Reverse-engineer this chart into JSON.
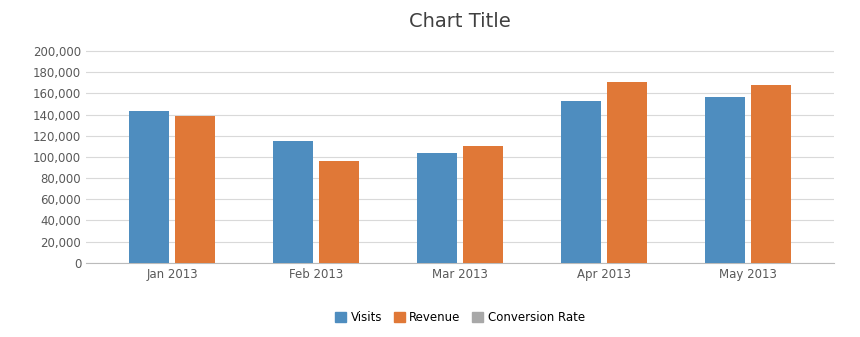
{
  "title": "Chart Title",
  "categories": [
    "Jan 2013",
    "Feb 2013",
    "Mar 2013",
    "Apr 2013",
    "May 2013"
  ],
  "series": [
    {
      "name": "Visits",
      "values": [
        143000,
        115000,
        104000,
        153000,
        157000
      ],
      "color": "#4E8DBF"
    },
    {
      "name": "Revenue",
      "values": [
        139000,
        96000,
        110000,
        171000,
        168000
      ],
      "color": "#E07837"
    },
    {
      "name": "Conversion Rate",
      "values": [
        0,
        0,
        0,
        0,
        0
      ],
      "color": "#A8A8A8"
    }
  ],
  "ylim": [
    0,
    210000
  ],
  "yticks": [
    0,
    20000,
    40000,
    60000,
    80000,
    100000,
    120000,
    140000,
    160000,
    180000,
    200000
  ],
  "background_color": "#FFFFFF",
  "plot_bg_color": "#FFFFFF",
  "grid_color": "#D9D9D9",
  "title_fontsize": 14,
  "tick_fontsize": 8.5,
  "legend_fontsize": 8.5,
  "bar_width": 0.28,
  "bar_gap": 0.04,
  "figsize": [
    8.6,
    3.37
  ],
  "dpi": 100
}
